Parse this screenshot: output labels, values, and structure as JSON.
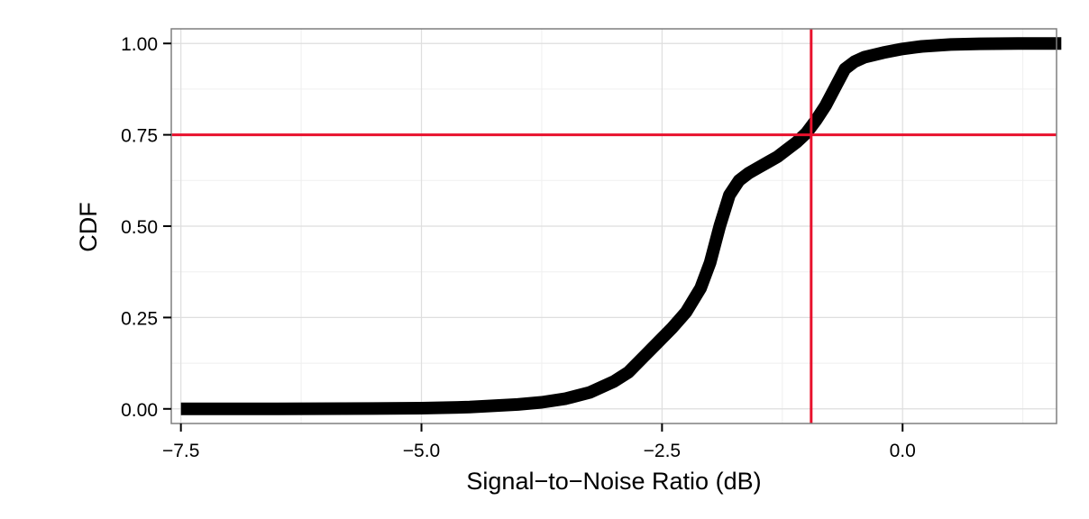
{
  "chart_data": {
    "type": "line",
    "xlabel": "Signal−to−Noise Ratio (dB)",
    "ylabel": "CDF",
    "xlim": [
      -7.6,
      1.6
    ],
    "ylim": [
      -0.04,
      1.04
    ],
    "x_ticks": [
      -7.5,
      -5.0,
      -2.5,
      0.0
    ],
    "x_tick_labels": [
      "−7.5",
      "−5.0",
      "−2.5",
      "0.0"
    ],
    "y_ticks": [
      0.0,
      0.25,
      0.5,
      0.75,
      1.0
    ],
    "y_tick_labels": [
      "0.00",
      "0.25",
      "0.50",
      "0.75",
      "1.00"
    ],
    "grid": true,
    "series": [
      {
        "color": "#000000",
        "x": [
          -7.5,
          -6.5,
          -5.5,
          -5.0,
          -4.5,
          -4.0,
          -3.75,
          -3.5,
          -3.25,
          -3.0,
          -2.85,
          -2.7,
          -2.55,
          -2.4,
          -2.25,
          -2.1,
          -2.0,
          -1.9,
          -1.8,
          -1.7,
          -1.6,
          -1.5,
          -1.4,
          -1.3,
          -1.2,
          -1.1,
          -1.0,
          -0.9,
          -0.8,
          -0.7,
          -0.6,
          -0.5,
          -0.4,
          -0.2,
          0.0,
          0.2,
          0.5,
          0.8,
          1.2,
          1.65
        ],
        "y": [
          0.0,
          0.0,
          0.001,
          0.002,
          0.005,
          0.012,
          0.018,
          0.028,
          0.045,
          0.075,
          0.1,
          0.14,
          0.18,
          0.22,
          0.265,
          0.33,
          0.4,
          0.5,
          0.585,
          0.625,
          0.645,
          0.66,
          0.675,
          0.69,
          0.71,
          0.73,
          0.755,
          0.79,
          0.83,
          0.88,
          0.93,
          0.95,
          0.962,
          0.975,
          0.985,
          0.992,
          0.997,
          0.999,
          1.0,
          1.0
        ]
      }
    ],
    "reference_lines": {
      "color": "#e8112d",
      "vertical_x": -0.95,
      "horizontal_y": 0.75
    }
  }
}
